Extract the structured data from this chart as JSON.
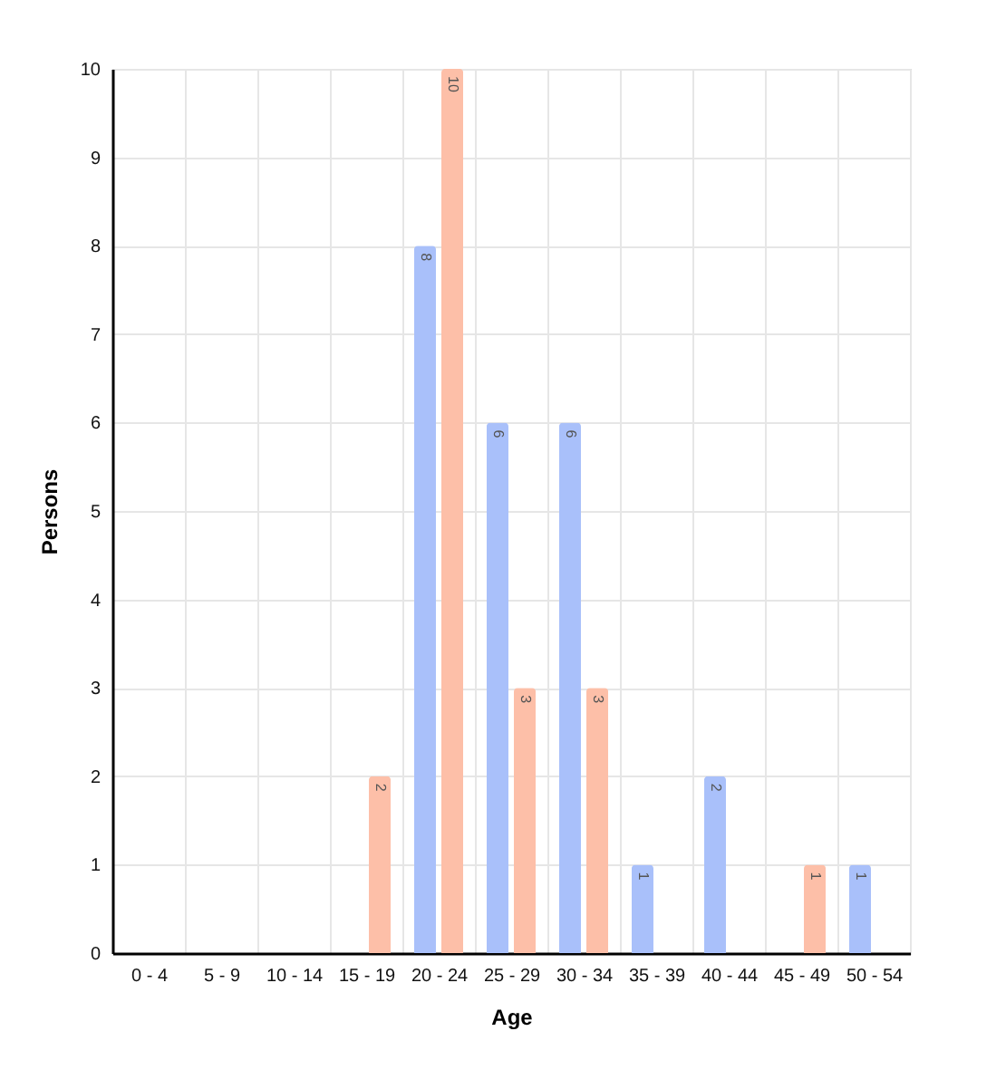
{
  "chart_data": {
    "type": "bar",
    "xlabel": "Age",
    "ylabel": "Persons",
    "categories": [
      "0 - 4",
      "5 - 9",
      "10 - 14",
      "15 - 19",
      "20 - 24",
      "25 - 29",
      "30 - 34",
      "35 - 39",
      "40 - 44",
      "45 - 49",
      "50 - 54"
    ],
    "series": [
      {
        "color": "#a9c0fa",
        "values": [
          null,
          null,
          null,
          null,
          8,
          6,
          6,
          1,
          2,
          null,
          1
        ]
      },
      {
        "color": "#fdbfa8",
        "values": [
          null,
          null,
          null,
          2,
          10,
          3,
          3,
          null,
          null,
          1,
          null
        ]
      }
    ],
    "ylim": [
      0,
      10
    ],
    "yticks": [
      0,
      1,
      2,
      3,
      4,
      5,
      6,
      7,
      8,
      9,
      10
    ],
    "grid": true,
    "data_labels": true
  }
}
